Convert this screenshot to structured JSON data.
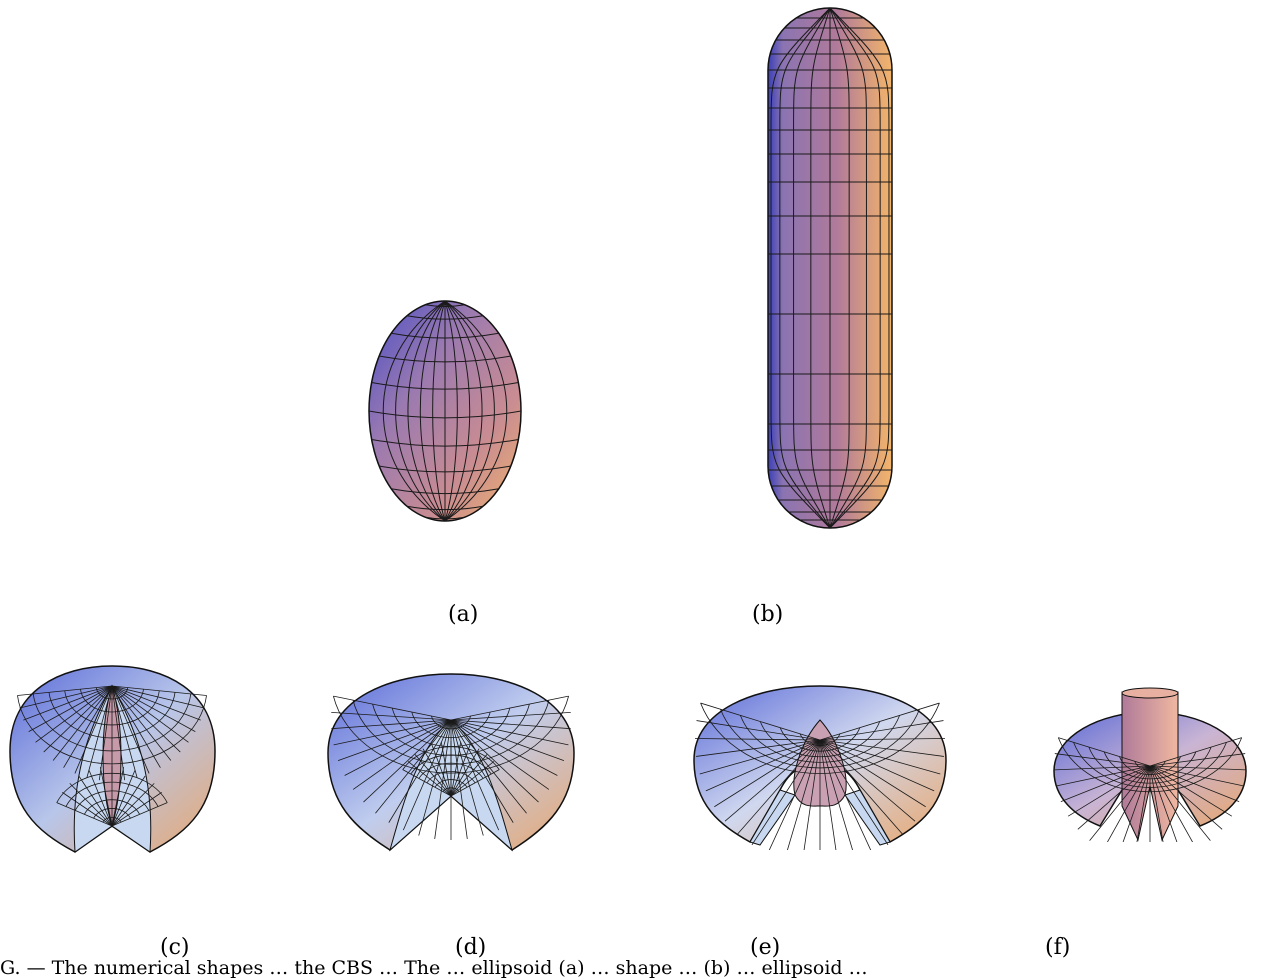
{
  "panels": [
    {
      "id": "a",
      "label": "(a)"
    },
    {
      "id": "b",
      "label": "(b)"
    },
    {
      "id": "c",
      "label": "(c)"
    },
    {
      "id": "d",
      "label": "(d)"
    },
    {
      "id": "e",
      "label": "(e)"
    },
    {
      "id": "f",
      "label": "(f)"
    }
  ],
  "caption": "G. — The numerical shapes … the CBS … The … ellipsoid (a) … shape … (b) … ellipsoid …",
  "colors": {
    "surface_pink": "#b07a9a",
    "surface_orange": "#e7a56a",
    "surface_blue": "#5a5ed0",
    "surface_lightblue": "#c8d8f0",
    "mesh": "#1a1a1a"
  }
}
